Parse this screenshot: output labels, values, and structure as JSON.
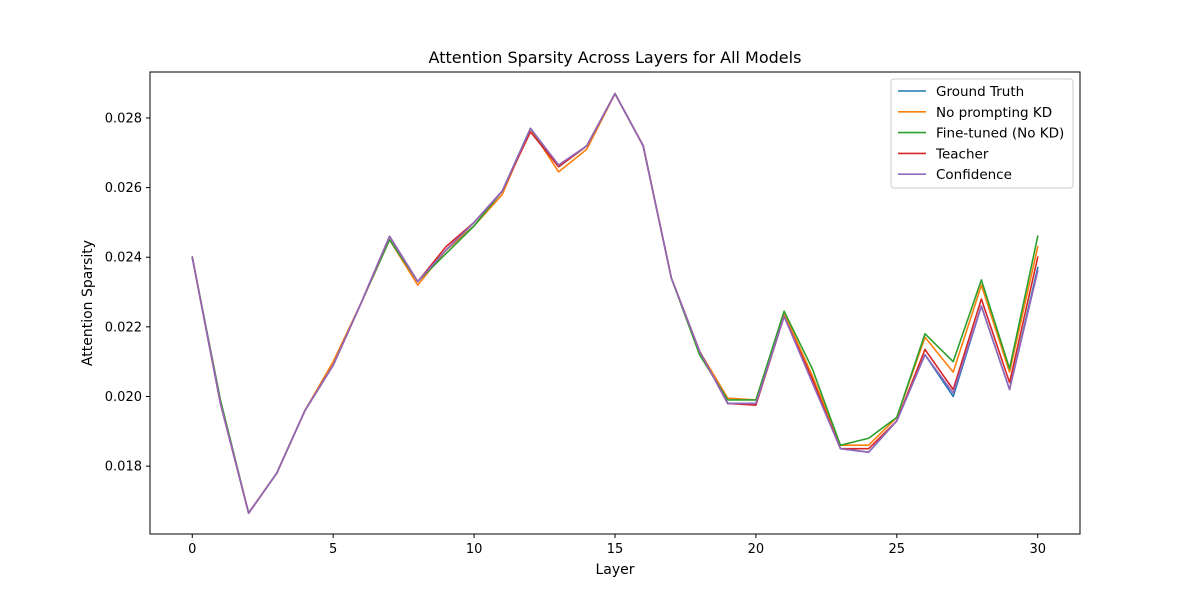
{
  "chart_data": {
    "type": "line",
    "title": "Attention Sparsity Across Layers for All Models",
    "xlabel": "Layer",
    "ylabel": "Attention Sparsity",
    "xlim": [
      -1.5,
      31.5
    ],
    "ylim": [
      0.01605,
      0.02932
    ],
    "xticks": [
      "0",
      "5",
      "10",
      "15",
      "20",
      "25",
      "30"
    ],
    "yticks": [
      "0.018",
      "0.020",
      "0.022",
      "0.024",
      "0.026",
      "0.028"
    ],
    "legend_position": "top-right",
    "grid": false,
    "x": [
      0,
      1,
      2,
      3,
      4,
      5,
      6,
      7,
      8,
      9,
      10,
      11,
      12,
      13,
      14,
      15,
      16,
      17,
      18,
      19,
      20,
      21,
      22,
      23,
      24,
      25,
      26,
      27,
      28,
      29,
      30
    ],
    "series": [
      {
        "name": "Ground Truth",
        "color": "#1f77b4",
        "values": [
          0.024,
          0.0198,
          0.01665,
          0.0178,
          0.0196,
          0.0209,
          0.0227,
          0.0246,
          0.0233,
          0.0242,
          0.025,
          0.0259,
          0.0277,
          0.0266,
          0.0272,
          0.0287,
          0.0272,
          0.0234,
          0.0213,
          0.0198,
          0.0198,
          0.0223,
          0.0205,
          0.0185,
          0.0184,
          0.0193,
          0.0212,
          0.02,
          0.0226,
          0.0202,
          0.0237
        ]
      },
      {
        "name": "No prompting KD",
        "color": "#ff7f0e",
        "values": [
          0.024,
          0.0198,
          0.01665,
          0.0178,
          0.0196,
          0.021,
          0.0227,
          0.0245,
          0.0232,
          0.0242,
          0.0249,
          0.0258,
          0.0277,
          0.02645,
          0.0271,
          0.0287,
          0.0272,
          0.0234,
          0.0213,
          0.01995,
          0.0199,
          0.0224,
          0.0206,
          0.0186,
          0.0186,
          0.0194,
          0.0217,
          0.0207,
          0.0232,
          0.0207,
          0.0243
        ]
      },
      {
        "name": "Fine-tuned (No KD)",
        "color": "#2ca02c",
        "values": [
          0.024,
          0.0199,
          0.01665,
          0.0178,
          0.0196,
          0.0209,
          0.0227,
          0.0245,
          0.0233,
          0.0241,
          0.0249,
          0.0259,
          0.0277,
          0.0266,
          0.0272,
          0.0287,
          0.0272,
          0.0234,
          0.0212,
          0.0199,
          0.0199,
          0.02245,
          0.0208,
          0.0186,
          0.0188,
          0.0194,
          0.0218,
          0.021,
          0.02335,
          0.0208,
          0.0246
        ]
      },
      {
        "name": "Teacher",
        "color": "#d62728",
        "values": [
          0.024,
          0.0198,
          0.01665,
          0.0178,
          0.0196,
          0.0209,
          0.0227,
          0.0246,
          0.0233,
          0.0243,
          0.025,
          0.0259,
          0.0276,
          0.0266,
          0.0272,
          0.0287,
          0.0272,
          0.0234,
          0.0213,
          0.0198,
          0.01975,
          0.0223,
          0.0205,
          0.0185,
          0.0185,
          0.0193,
          0.02135,
          0.0202,
          0.0228,
          0.0204,
          0.024
        ]
      },
      {
        "name": "Confidence",
        "color": "#9467bd",
        "values": [
          0.024,
          0.0198,
          0.01665,
          0.0178,
          0.0196,
          0.0209,
          0.0227,
          0.0246,
          0.0233,
          0.0242,
          0.025,
          0.0259,
          0.0277,
          0.02665,
          0.0272,
          0.0287,
          0.0272,
          0.0234,
          0.0213,
          0.0198,
          0.0198,
          0.0223,
          0.0204,
          0.0185,
          0.0184,
          0.0193,
          0.0212,
          0.0201,
          0.0226,
          0.0202,
          0.0236
        ]
      }
    ]
  }
}
